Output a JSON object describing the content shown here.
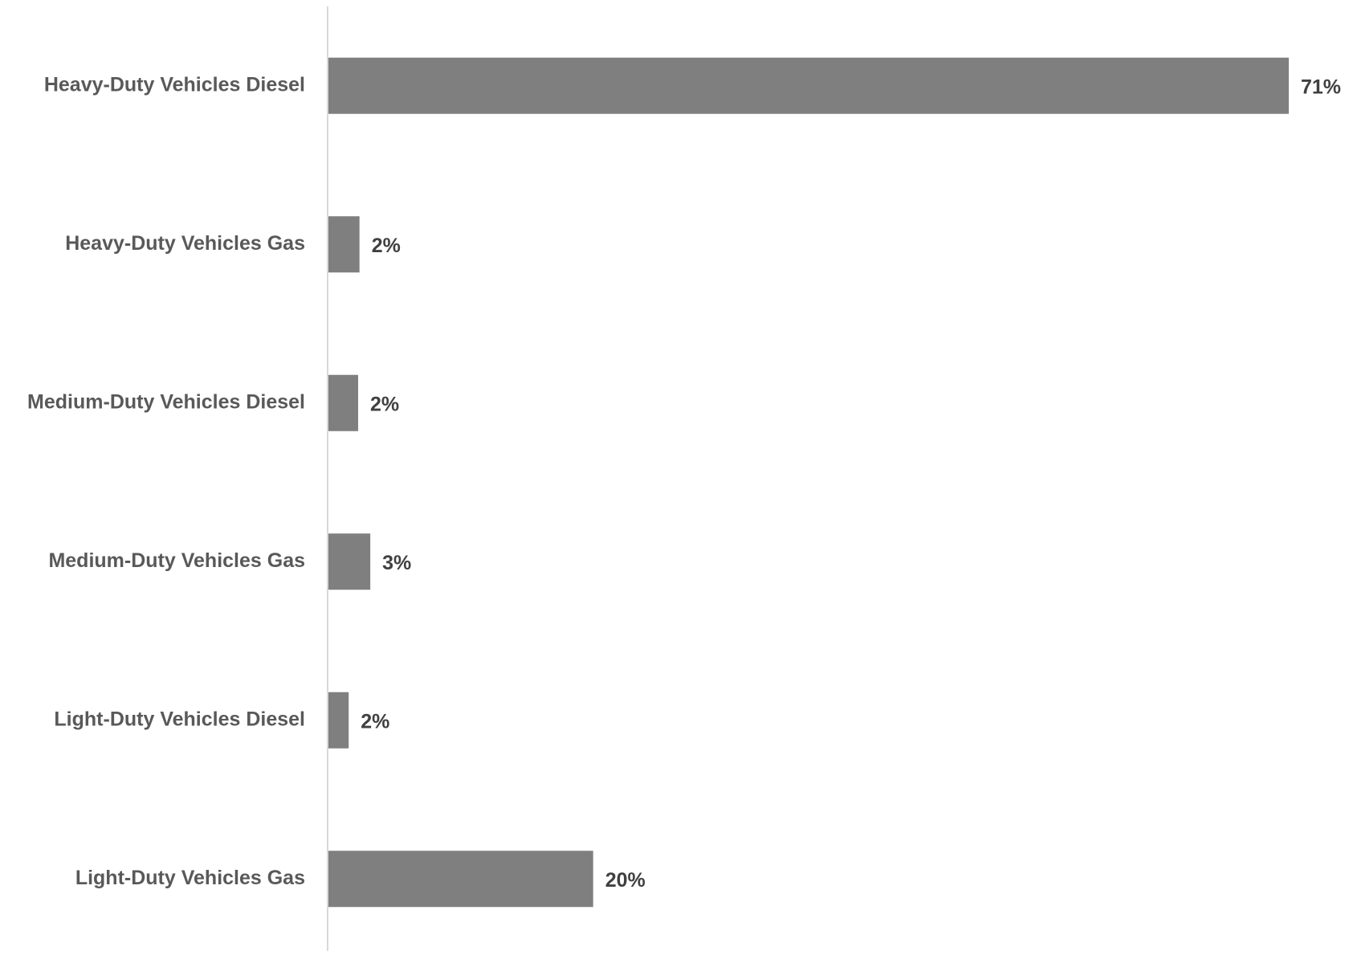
{
  "chart_data": {
    "type": "bar",
    "orientation": "horizontal",
    "title": "",
    "xlabel": "",
    "ylabel": "",
    "categories": [
      "Heavy-Duty Vehicles Diesel",
      "Heavy-Duty Vehicles Gas",
      "Medium-Duty Vehicles Diesel",
      "Medium-Duty Vehicles Gas",
      "Light-Duty Vehicles Diesel",
      "Light-Duty Vehicles Gas"
    ],
    "values": [
      71.1,
      2.3,
      2.2,
      3.1,
      1.5,
      19.6
    ],
    "data_labels": [
      "71%",
      "2%",
      "2%",
      "3%",
      "2%",
      "20%"
    ],
    "unit": "%",
    "xlim": [
      0,
      71.1
    ],
    "grid": false,
    "legend": "none",
    "colors": {
      "bar": "#7f7f7f",
      "axis": "#d9d9d9",
      "category_text": "#595959",
      "value_text": "#404040"
    }
  }
}
